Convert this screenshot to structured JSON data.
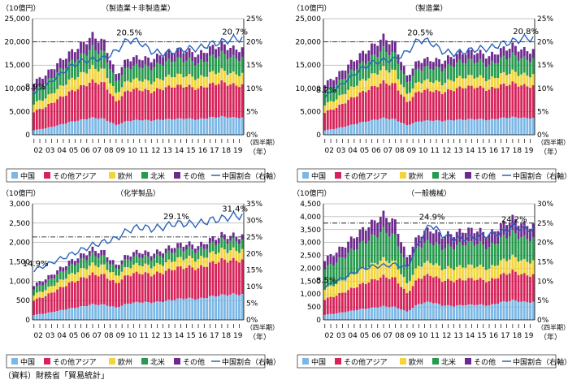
{
  "colors": {
    "china": "#7bb8e6",
    "asia": "#d6245a",
    "eu": "#f2d43c",
    "na": "#279a4e",
    "other": "#6c2a8c",
    "line": "#2a64b8"
  },
  "source_note": "（資料）財務省「貿易統計」",
  "chart_data": [
    {
      "type": "bar",
      "title": "（製造業＋非製造業）",
      "yunit": "（10億円）",
      "y2unit": "（四半期）",
      "xunit": "（年）",
      "ylim": [
        0,
        25000
      ],
      "yticks": [
        "0",
        "5,000",
        "10,000",
        "15,000",
        "20,000",
        "25,000"
      ],
      "y2lim": [
        0,
        25
      ],
      "y2ticks": [
        "0%",
        "5%",
        "10%",
        "15%",
        "20%",
        "25%"
      ],
      "refline": 20,
      "years": [
        "02",
        "03",
        "04",
        "05",
        "06",
        "07",
        "08",
        "09",
        "10",
        "11",
        "12",
        "13",
        "14",
        "15",
        "16",
        "17",
        "18",
        "19"
      ],
      "quarter_label": "Ⅰ",
      "series": [
        {
          "name": "中国",
          "key": "china",
          "values": [
            1000,
            1400,
            2000,
            2700,
            3200,
            3700,
            3400,
            2100,
            3000,
            3200,
            3100,
            3300,
            3400,
            3500,
            3300,
            3700,
            3900,
            3700
          ]
        },
        {
          "name": "その他アジア",
          "key": "asia",
          "values": [
            4000,
            4600,
            5600,
            6400,
            7100,
            7800,
            7600,
            5000,
            6600,
            6600,
            6200,
            6700,
            7100,
            7000,
            6600,
            7100,
            7400,
            7000
          ]
        },
        {
          "name": "欧州",
          "key": "eu",
          "values": [
            1700,
            1900,
            2200,
            2500,
            2700,
            3000,
            2800,
            1800,
            2100,
            2100,
            2000,
            2200,
            2300,
            2300,
            2200,
            2400,
            2500,
            2400
          ]
        },
        {
          "name": "北米",
          "key": "na",
          "values": [
            3000,
            3200,
            3500,
            3700,
            3900,
            4100,
            3700,
            2500,
            2900,
            2900,
            3100,
            3300,
            3400,
            3400,
            3200,
            3400,
            3600,
            3400
          ]
        },
        {
          "name": "その他",
          "key": "other",
          "values": [
            1600,
            1800,
            2000,
            2200,
            2400,
            2700,
            2400,
            1500,
            1800,
            1800,
            1800,
            1900,
            2000,
            2000,
            1900,
            2000,
            2100,
            2000
          ]
        }
      ],
      "line": {
        "name": "中国割合（右軸）",
        "values": [
          8.9,
          10.5,
          12.5,
          14.5,
          15.8,
          16.2,
          16.5,
          18.0,
          20.5,
          20.0,
          18.0,
          17.5,
          18.0,
          18.5,
          18.6,
          19.5,
          20.0,
          20.7
        ]
      },
      "annotations": [
        {
          "text": "8.9%",
          "i": 0,
          "v": 8.9
        },
        {
          "text": "20.5%",
          "i": 8,
          "v": 20.5
        },
        {
          "text": "20.7%",
          "i": 17,
          "v": 20.7
        }
      ],
      "legend": [
        "中国",
        "その他アジア",
        "欧州",
        "北米",
        "その他",
        "中国割合（右軸）"
      ]
    },
    {
      "type": "bar",
      "title": "（製造業）",
      "yunit": "（10億円）",
      "y2unit": "（四半期）",
      "xunit": "（年）",
      "ylim": [
        0,
        25000
      ],
      "yticks": [
        "0",
        "5,000",
        "10,000",
        "15,000",
        "20,000",
        "25,000"
      ],
      "y2lim": [
        0,
        25
      ],
      "y2ticks": [
        "0%",
        "5%",
        "10%",
        "15%",
        "20%",
        "25%"
      ],
      "refline": 20,
      "years": [
        "02",
        "03",
        "04",
        "05",
        "06",
        "07",
        "08",
        "09",
        "10",
        "11",
        "12",
        "13",
        "14",
        "15",
        "16",
        "17",
        "18",
        "19"
      ],
      "quarter_label": "Ⅰ",
      "series": [
        {
          "name": "中国",
          "key": "china",
          "values": [
            950,
            1350,
            1950,
            2600,
            3100,
            3600,
            3300,
            2050,
            2900,
            3100,
            3000,
            3200,
            3300,
            3400,
            3200,
            3600,
            3800,
            3600
          ]
        },
        {
          "name": "その他アジア",
          "key": "asia",
          "values": [
            3900,
            4500,
            5500,
            6300,
            7000,
            7700,
            7500,
            4900,
            6500,
            6500,
            6100,
            6600,
            7000,
            6900,
            6500,
            7000,
            7300,
            6900
          ]
        },
        {
          "name": "欧州",
          "key": "eu",
          "values": [
            1650,
            1850,
            2150,
            2450,
            2650,
            2950,
            2750,
            1750,
            2050,
            2050,
            1950,
            2150,
            2250,
            2250,
            2150,
            2350,
            2450,
            2350
          ]
        },
        {
          "name": "北米",
          "key": "na",
          "values": [
            2950,
            3150,
            3450,
            3650,
            3850,
            4050,
            3650,
            2450,
            2850,
            2850,
            3050,
            3250,
            3350,
            3350,
            3150,
            3350,
            3550,
            3350
          ]
        },
        {
          "name": "その他",
          "key": "other",
          "values": [
            1550,
            1750,
            1950,
            2150,
            2350,
            2650,
            2350,
            1450,
            1750,
            1750,
            1750,
            1850,
            1950,
            1950,
            1850,
            1950,
            2050,
            1950
          ]
        }
      ],
      "line": {
        "name": "中国割合（右軸）",
        "values": [
          8.2,
          10.0,
          12.0,
          14.0,
          15.5,
          16.0,
          16.3,
          17.8,
          20.5,
          20.0,
          18.0,
          17.5,
          18.0,
          18.5,
          18.6,
          19.5,
          20.1,
          20.8
        ]
      },
      "annotations": [
        {
          "text": "8.2%",
          "i": 0,
          "v": 8.2
        },
        {
          "text": "20.5%",
          "i": 8,
          "v": 20.5
        },
        {
          "text": "20.8%",
          "i": 17,
          "v": 20.8
        }
      ],
      "legend": [
        "中国",
        "その他アジア",
        "欧州",
        "北米",
        "その他",
        "中国割合（右軸）"
      ]
    },
    {
      "type": "bar",
      "title": "（化学製品）",
      "yunit": "（10億円）",
      "y2unit": "（四半期）",
      "xunit": "（年）",
      "ylim": [
        0,
        3000
      ],
      "yticks": [
        "0",
        "500",
        "1,000",
        "1,500",
        "2,000",
        "2,500",
        "3,000"
      ],
      "y2lim": [
        0,
        35
      ],
      "y2ticks": [
        "0%",
        "5%",
        "10%",
        "15%",
        "20%",
        "25%",
        "30%",
        "35%"
      ],
      "refline": 25,
      "years": [
        "02",
        "03",
        "04",
        "05",
        "06",
        "07",
        "08",
        "09",
        "10",
        "11",
        "12",
        "13",
        "14",
        "15",
        "16",
        "17",
        "18",
        "19"
      ],
      "quarter_label": "Ⅰ",
      "series": [
        {
          "name": "中国",
          "key": "china",
          "values": [
            130,
            170,
            230,
            290,
            340,
            400,
            390,
            320,
            420,
            460,
            450,
            480,
            530,
            560,
            540,
            600,
            640,
            660
          ]
        },
        {
          "name": "その他アジア",
          "key": "asia",
          "values": [
            380,
            450,
            550,
            650,
            720,
            780,
            760,
            620,
            740,
            760,
            720,
            750,
            800,
            810,
            790,
            850,
            900,
            880
          ]
        },
        {
          "name": "欧州",
          "key": "eu",
          "values": [
            140,
            160,
            180,
            210,
            230,
            250,
            240,
            190,
            210,
            220,
            210,
            220,
            230,
            240,
            230,
            250,
            260,
            260
          ]
        },
        {
          "name": "北米",
          "key": "na",
          "values": [
            160,
            180,
            200,
            220,
            240,
            250,
            230,
            180,
            200,
            210,
            210,
            220,
            230,
            230,
            220,
            240,
            250,
            240
          ]
        },
        {
          "name": "その他",
          "key": "other",
          "values": [
            90,
            100,
            110,
            120,
            130,
            140,
            130,
            100,
            110,
            120,
            120,
            120,
            130,
            130,
            120,
            130,
            140,
            130
          ]
        }
      ],
      "line": {
        "name": "中国割合（右軸）",
        "values": [
          14.9,
          16.5,
          18.0,
          19.5,
          21.0,
          22.5,
          23.5,
          24.5,
          27.0,
          28.0,
          27.5,
          28.0,
          29.1,
          29.0,
          29.0,
          30.0,
          30.5,
          31.4
        ]
      },
      "annotations": [
        {
          "text": "14.9%",
          "i": 0,
          "v": 14.9
        },
        {
          "text": "29.1%",
          "i": 12,
          "v": 29.1
        },
        {
          "text": "31.4%",
          "i": 17,
          "v": 31.4
        }
      ],
      "legend": [
        "中国",
        "その他アジア",
        "欧州",
        "北米",
        "その他",
        "中国割合（右軸）"
      ]
    },
    {
      "type": "bar",
      "title": "（一般機械）",
      "yunit": "（10億円）",
      "y2unit": "（四半期）",
      "xunit": "（年）",
      "ylim": [
        0,
        4500
      ],
      "yticks": [
        "0",
        "500",
        "1,000",
        "1,500",
        "2,000",
        "2,500",
        "3,000",
        "3,500",
        "4,000",
        "4,500"
      ],
      "y2lim": [
        0,
        30
      ],
      "y2ticks": [
        "0%",
        "5%",
        "10%",
        "15%",
        "20%",
        "25%",
        "30%"
      ],
      "refline": 25,
      "years": [
        "02",
        "03",
        "04",
        "05",
        "06",
        "07",
        "08",
        "09",
        "10",
        "11",
        "12",
        "13",
        "14",
        "15",
        "16",
        "17",
        "18",
        "19"
      ],
      "quarter_label": "Ⅰ",
      "series": [
        {
          "name": "中国",
          "key": "china",
          "values": [
            200,
            250,
            330,
            410,
            470,
            530,
            500,
            320,
            620,
            700,
            560,
            540,
            580,
            590,
            560,
            680,
            760,
            690
          ]
        },
        {
          "name": "その他アジア",
          "key": "asia",
          "values": [
            600,
            700,
            820,
            950,
            1050,
            1150,
            1100,
            700,
            1000,
            1050,
            970,
            980,
            1000,
            990,
            940,
            1050,
            1120,
            1050
          ]
        },
        {
          "name": "欧州",
          "key": "eu",
          "values": [
            400,
            450,
            500,
            560,
            610,
            660,
            620,
            380,
            480,
            500,
            470,
            490,
            510,
            510,
            480,
            530,
            560,
            530
          ]
        },
        {
          "name": "北米",
          "key": "na",
          "values": [
            800,
            850,
            920,
            1000,
            1060,
            1120,
            1000,
            650,
            760,
            790,
            800,
            840,
            880,
            880,
            830,
            880,
            930,
            880
          ]
        },
        {
          "name": "その他",
          "key": "other",
          "values": [
            350,
            390,
            440,
            500,
            550,
            610,
            560,
            350,
            440,
            470,
            470,
            490,
            510,
            510,
            480,
            520,
            560,
            520
          ]
        }
      ],
      "line": {
        "name": "中国割合（右軸）",
        "values": [
          8.5,
          10.0,
          11.5,
          13.0,
          13.8,
          14.0,
          14.3,
          13.5,
          20.0,
          24.9,
          22.0,
          21.0,
          21.0,
          21.5,
          22.0,
          22.5,
          24.2,
          23.4
        ]
      },
      "annotations": [
        {
          "text": "8.5%",
          "i": 0,
          "v": 8.5
        },
        {
          "text": "24.9%",
          "i": 9,
          "v": 24.9
        },
        {
          "text": "24.2%",
          "i": 16,
          "v": 24.2
        }
      ],
      "legend": [
        "中国",
        "その他アジア",
        "欧州",
        "北米",
        "その他",
        "中国割合（右軸）"
      ]
    }
  ]
}
